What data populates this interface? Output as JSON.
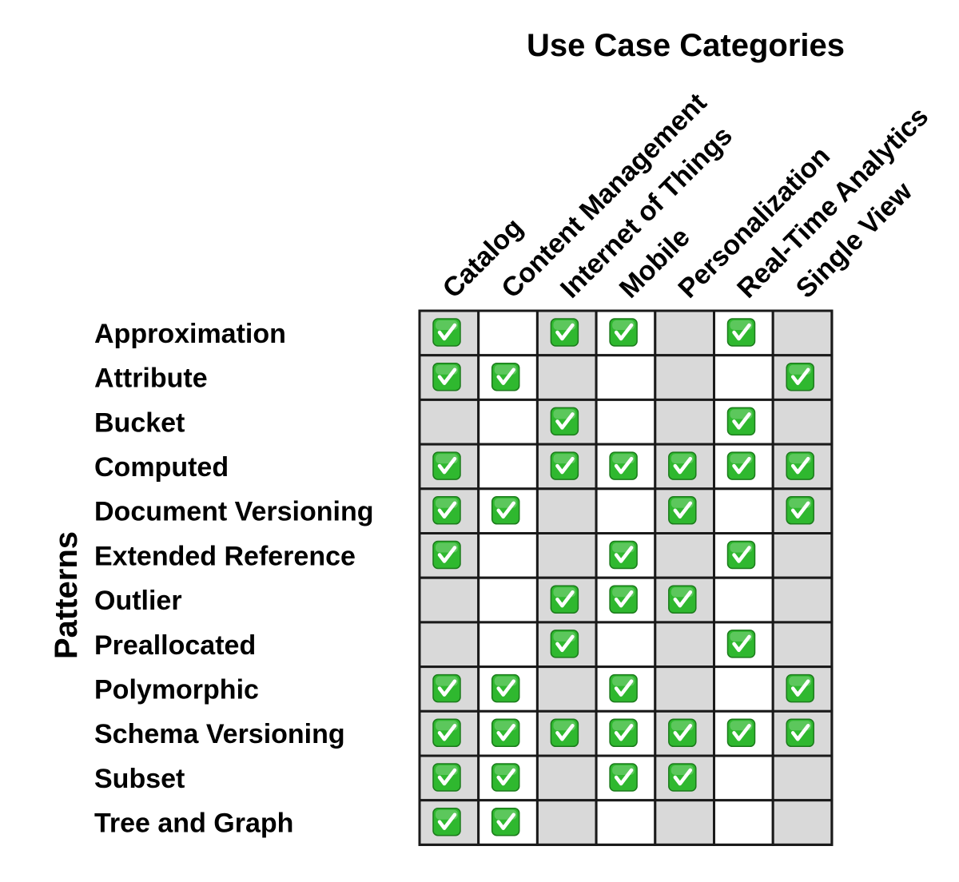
{
  "chart_data": {
    "type": "table",
    "title": "Use Case Categories",
    "ylabel": "Patterns",
    "columns": [
      "Catalog",
      "Content Management",
      "Internet of Things",
      "Mobile",
      "Personalization",
      "Real-Time Analytics",
      "Single View"
    ],
    "rows": [
      "Approximation",
      "Attribute",
      "Bucket",
      "Computed",
      "Document Versioning",
      "Extended Reference",
      "Outlier",
      "Preallocated",
      "Polymorphic",
      "Schema Versioning",
      "Subset",
      "Tree and Graph"
    ],
    "matrix": [
      [
        1,
        0,
        1,
        1,
        0,
        1,
        0
      ],
      [
        1,
        1,
        0,
        0,
        0,
        0,
        1
      ],
      [
        0,
        0,
        1,
        0,
        0,
        1,
        0
      ],
      [
        1,
        0,
        1,
        1,
        1,
        1,
        1
      ],
      [
        1,
        1,
        0,
        0,
        1,
        0,
        1
      ],
      [
        1,
        0,
        0,
        1,
        0,
        1,
        0
      ],
      [
        0,
        0,
        1,
        1,
        1,
        0,
        0
      ],
      [
        0,
        0,
        1,
        0,
        0,
        1,
        0
      ],
      [
        1,
        1,
        0,
        1,
        0,
        0,
        1
      ],
      [
        1,
        1,
        1,
        1,
        1,
        1,
        1
      ],
      [
        1,
        1,
        0,
        1,
        1,
        0,
        0
      ],
      [
        1,
        1,
        0,
        0,
        0,
        0,
        0
      ]
    ],
    "column_shading": [
      "gray",
      "white",
      "gray",
      "white",
      "gray",
      "white",
      "gray"
    ],
    "check_icon": "green-checkbox-icon",
    "colors": {
      "shade": "#d9d9d9",
      "blank": "#ffffff",
      "grid": "#1a1a1a",
      "check_fill": "#2fb82f",
      "check_border": "#1b7a1b"
    }
  }
}
